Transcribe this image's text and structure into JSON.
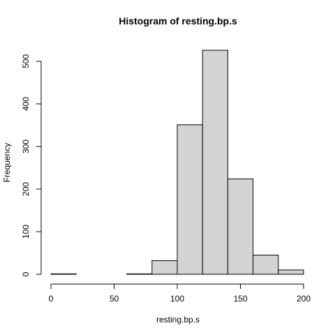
{
  "chart_data": {
    "type": "bar",
    "title": "Histogram of resting.bp.s",
    "xlabel": "resting.bp.s",
    "ylabel": "Frequency",
    "bins": [
      {
        "start": 0,
        "end": 20,
        "count": 1
      },
      {
        "start": 20,
        "end": 40,
        "count": 0
      },
      {
        "start": 40,
        "end": 60,
        "count": 0
      },
      {
        "start": 60,
        "end": 80,
        "count": 1
      },
      {
        "start": 80,
        "end": 100,
        "count": 32
      },
      {
        "start": 100,
        "end": 120,
        "count": 351
      },
      {
        "start": 120,
        "end": 140,
        "count": 526
      },
      {
        "start": 140,
        "end": 160,
        "count": 224
      },
      {
        "start": 160,
        "end": 180,
        "count": 45
      },
      {
        "start": 180,
        "end": 200,
        "count": 10
      }
    ],
    "xlim": [
      0,
      200
    ],
    "ylim": [
      0,
      526
    ],
    "x_ticks": [
      0,
      50,
      100,
      150,
      200
    ],
    "y_ticks": [
      0,
      100,
      200,
      300,
      400,
      500
    ],
    "bar_color": "#d3d3d3",
    "edge_color": "#000000",
    "grid": false
  }
}
